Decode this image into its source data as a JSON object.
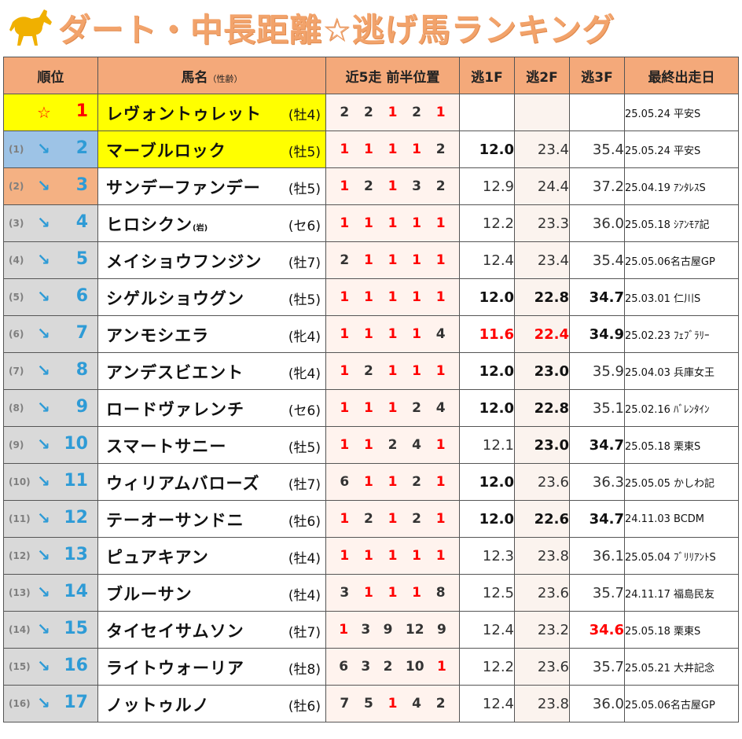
{
  "title": "ダート・中長距離☆逃げ馬ランキング",
  "headers": {
    "rank": "順位",
    "name": "馬名",
    "name_sub": "（性齢）",
    "positions": "近5走 前半位置",
    "f1": "逃1F",
    "f2": "逃2F",
    "f3": "逃3F",
    "last": "最終出走日"
  },
  "rows": [
    {
      "prev": "",
      "rank": "1",
      "name": "レヴォントゥレット",
      "note": "",
      "sex": "(牡4)",
      "pos": [
        "2",
        "2",
        "1",
        "2",
        "1"
      ],
      "f1": "",
      "f2": "",
      "f3": "",
      "last": "25.05.24 平安S"
    },
    {
      "prev": "(1)",
      "rank": "2",
      "name": "マーブルロック",
      "note": "",
      "sex": "(牡5)",
      "pos": [
        "1",
        "1",
        "1",
        "1",
        "2"
      ],
      "f1": "12.0",
      "f2": "23.4",
      "f3": "35.4",
      "last": "25.05.24 平安S"
    },
    {
      "prev": "(2)",
      "rank": "3",
      "name": "サンデーファンデー",
      "note": "",
      "sex": "(牡5)",
      "pos": [
        "1",
        "2",
        "1",
        "3",
        "2"
      ],
      "f1": "12.9",
      "f2": "24.4",
      "f3": "37.2",
      "last": "25.04.19 ｱﾝﾀﾚｽS"
    },
    {
      "prev": "(3)",
      "rank": "4",
      "name": "ヒロシクン",
      "note": "(岩)",
      "sex": "(セ6)",
      "pos": [
        "1",
        "1",
        "1",
        "1",
        "1"
      ],
      "f1": "12.2",
      "f2": "23.3",
      "f3": "36.0",
      "last": "25.05.18 ｼｱﾝﾓｱ記"
    },
    {
      "prev": "(4)",
      "rank": "5",
      "name": "メイショウフンジン",
      "note": "",
      "sex": "(牡7)",
      "pos": [
        "2",
        "1",
        "1",
        "1",
        "1"
      ],
      "f1": "12.4",
      "f2": "23.4",
      "f3": "35.4",
      "last": "25.05.06名古屋GP"
    },
    {
      "prev": "(5)",
      "rank": "6",
      "name": "シゲルショウグン",
      "note": "",
      "sex": "(牡5)",
      "pos": [
        "1",
        "1",
        "1",
        "1",
        "1"
      ],
      "f1": "12.0",
      "f2": "22.8",
      "f3": "34.7",
      "last": "25.03.01 仁川S"
    },
    {
      "prev": "(6)",
      "rank": "7",
      "name": "アンモシエラ",
      "note": "",
      "sex": "(牝4)",
      "pos": [
        "1",
        "1",
        "1",
        "1",
        "4"
      ],
      "f1": "11.6",
      "f2": "22.4",
      "f3": "34.9",
      "last": "25.02.23 ﾌｪﾌﾞﾗﾘｰ"
    },
    {
      "prev": "(7)",
      "rank": "8",
      "name": "アンデスビエント",
      "note": "",
      "sex": "(牝4)",
      "pos": [
        "1",
        "2",
        "1",
        "1",
        "1"
      ],
      "f1": "12.0",
      "f2": "23.0",
      "f3": "35.9",
      "last": "25.04.03 兵庫女王"
    },
    {
      "prev": "(8)",
      "rank": "9",
      "name": "ロードヴァレンチ",
      "note": "",
      "sex": "(セ6)",
      "pos": [
        "1",
        "1",
        "1",
        "2",
        "4"
      ],
      "f1": "12.0",
      "f2": "22.8",
      "f3": "35.1",
      "last": "25.02.16 ﾊﾞﾚﾝﾀｲﾝ"
    },
    {
      "prev": "(9)",
      "rank": "10",
      "name": "スマートサニー",
      "note": "",
      "sex": "(牡5)",
      "pos": [
        "1",
        "1",
        "2",
        "4",
        "1"
      ],
      "f1": "12.1",
      "f2": "23.0",
      "f3": "34.7",
      "last": "25.05.18 栗東S"
    },
    {
      "prev": "(10)",
      "rank": "11",
      "name": "ウィリアムバローズ",
      "note": "",
      "sex": "(牡7)",
      "pos": [
        "6",
        "1",
        "1",
        "2",
        "1"
      ],
      "f1": "12.0",
      "f2": "23.6",
      "f3": "36.3",
      "last": "25.05.05 かしわ記"
    },
    {
      "prev": "(11)",
      "rank": "12",
      "name": "テーオーサンドニ",
      "note": "",
      "sex": "(牡6)",
      "pos": [
        "1",
        "2",
        "1",
        "2",
        "1"
      ],
      "f1": "12.0",
      "f2": "22.6",
      "f3": "34.7",
      "last": "24.11.03 BCDM"
    },
    {
      "prev": "(12)",
      "rank": "13",
      "name": "ピュアキアン",
      "note": "",
      "sex": "(牡4)",
      "pos": [
        "1",
        "1",
        "1",
        "1",
        "1"
      ],
      "f1": "12.3",
      "f2": "23.8",
      "f3": "36.1",
      "last": "25.05.04 ﾌﾞﾘﾘｱﾝﾄS"
    },
    {
      "prev": "(13)",
      "rank": "14",
      "name": "ブルーサン",
      "note": "",
      "sex": "(牡4)",
      "pos": [
        "3",
        "1",
        "1",
        "1",
        "8"
      ],
      "f1": "12.5",
      "f2": "23.6",
      "f3": "35.7",
      "last": "24.11.17 福島民友"
    },
    {
      "prev": "(14)",
      "rank": "15",
      "name": "タイセイサムソン",
      "note": "",
      "sex": "(牡7)",
      "pos": [
        "1",
        "3",
        "9",
        "12",
        "9"
      ],
      "f1": "12.4",
      "f2": "23.2",
      "f3": "34.6",
      "last": "25.05.18 栗東S"
    },
    {
      "prev": "(15)",
      "rank": "16",
      "name": "ライトウォーリア",
      "note": "",
      "sex": "(牡8)",
      "pos": [
        "6",
        "3",
        "2",
        "10",
        "1"
      ],
      "f1": "12.2",
      "f2": "23.6",
      "f3": "35.7",
      "last": "25.05.21 大井記念"
    },
    {
      "prev": "(16)",
      "rank": "17",
      "name": "ノットゥルノ",
      "note": "",
      "sex": "(牡6)",
      "pos": [
        "7",
        "5",
        "1",
        "4",
        "2"
      ],
      "f1": "12.4",
      "f2": "23.8",
      "f3": "36.0",
      "last": "25.05.06名古屋GP"
    }
  ],
  "colors": {
    "accent": "#f2a36b",
    "header": "#f4a97a",
    "rank_blue": "#2e9bd6",
    "red": "#ff0000"
  }
}
